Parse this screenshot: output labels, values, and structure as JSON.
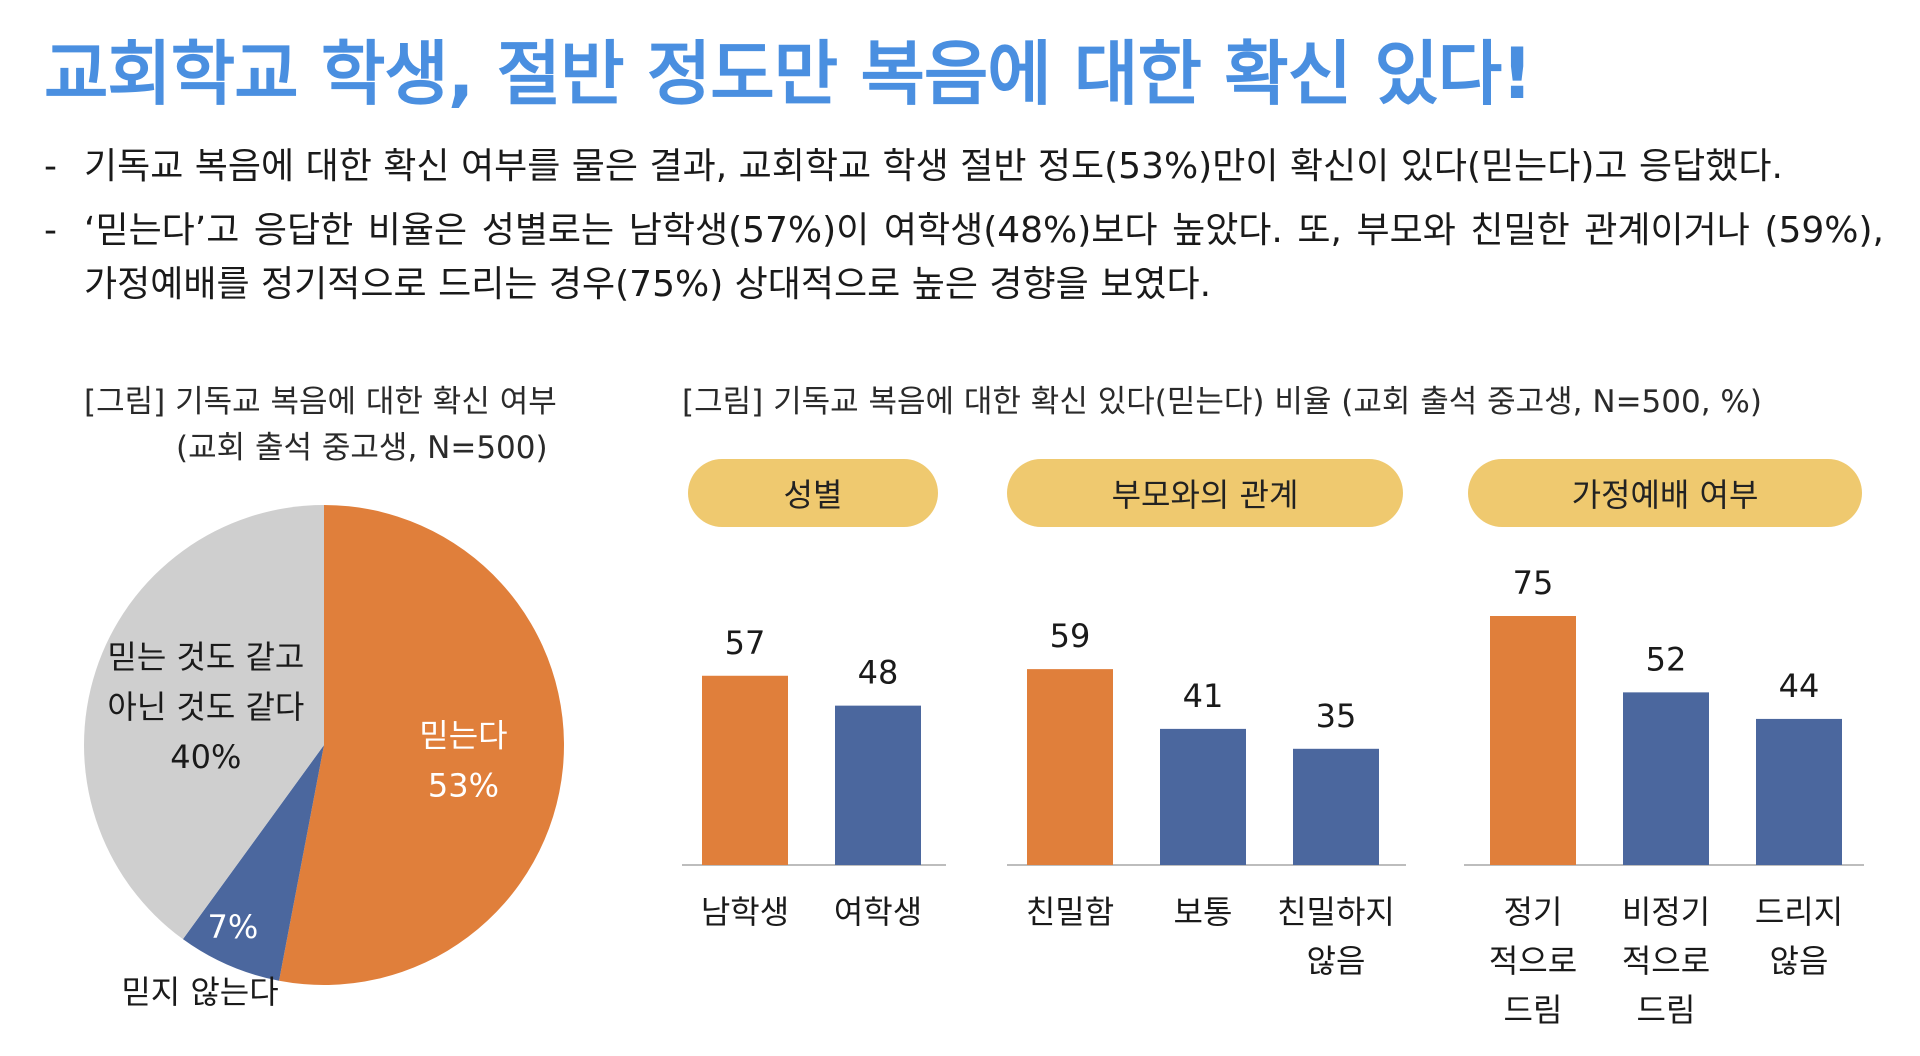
{
  "title": "교회학교 학생, 절반 정도만 복음에 대한 확신 있다!",
  "bullets": [
    {
      "marker": "-",
      "text": "기독교 복음에 대한 확신 여부를 물은 결과, 교회학교 학생 절반 정도(53%)만이 확신이 있다(믿는다)고 응답했다."
    },
    {
      "marker": "-",
      "text": "‘믿는다’고 응답한 비율은 성별로는 남학생(57%)이 여학생(48%)보다 높았다. 또, 부모와 친밀한 관계이거나 (59%), 가정예배를 정기적으로 드리는 경우(75%) 상대적으로 높은 경향을 보였다."
    }
  ],
  "pie_caption": {
    "line1": "[그림] 기독교 복음에 대한 확신 여부",
    "line2": "(교회 출석 중고생, N=500)"
  },
  "bar_caption": "[그림] 기독교 복음에 대한 확신 있다(믿는다) 비율 (교회 출석 중고생, N=500, %)",
  "colors": {
    "orange": "#e07f3b",
    "blue": "#4b679e",
    "gray": "#cfcfcf",
    "pill": "#efc96f",
    "title": "#4a8fe0"
  },
  "chart_data": [
    {
      "type": "pie",
      "slices": [
        {
          "label": [
            "믿는다"
          ],
          "value": 53,
          "pct_label": "53%",
          "color": "#e07f3b"
        },
        {
          "label": [
            "믿지 않는다"
          ],
          "value": 7,
          "pct_label": "7%",
          "color": "#4b679e"
        },
        {
          "label": [
            "믿는 것도 같고",
            "아닌 것도 같다"
          ],
          "value": 40,
          "pct_label": "40%",
          "color": "#cfcfcf"
        }
      ]
    },
    {
      "type": "bar",
      "ylim": [
        0,
        100
      ],
      "groups": [
        {
          "header": "성별",
          "categories": [
            [
              "남학생"
            ],
            [
              "여학생"
            ]
          ],
          "values": [
            57,
            48
          ],
          "colors": [
            "#e07f3b",
            "#4b679e"
          ]
        },
        {
          "header": "부모와의 관계",
          "categories": [
            [
              "친밀함"
            ],
            [
              "보통"
            ],
            [
              "친밀하지",
              "않음"
            ]
          ],
          "values": [
            59,
            41,
            35
          ],
          "colors": [
            "#e07f3b",
            "#4b679e",
            "#4b679e"
          ]
        },
        {
          "header": "가정예배 여부",
          "categories": [
            [
              "정기",
              "적으로",
              "드림"
            ],
            [
              "비정기",
              "적으로",
              "드림"
            ],
            [
              "드리지",
              "않음"
            ]
          ],
          "values": [
            75,
            52,
            44
          ],
          "colors": [
            "#e07f3b",
            "#4b679e",
            "#4b679e"
          ]
        }
      ]
    }
  ]
}
